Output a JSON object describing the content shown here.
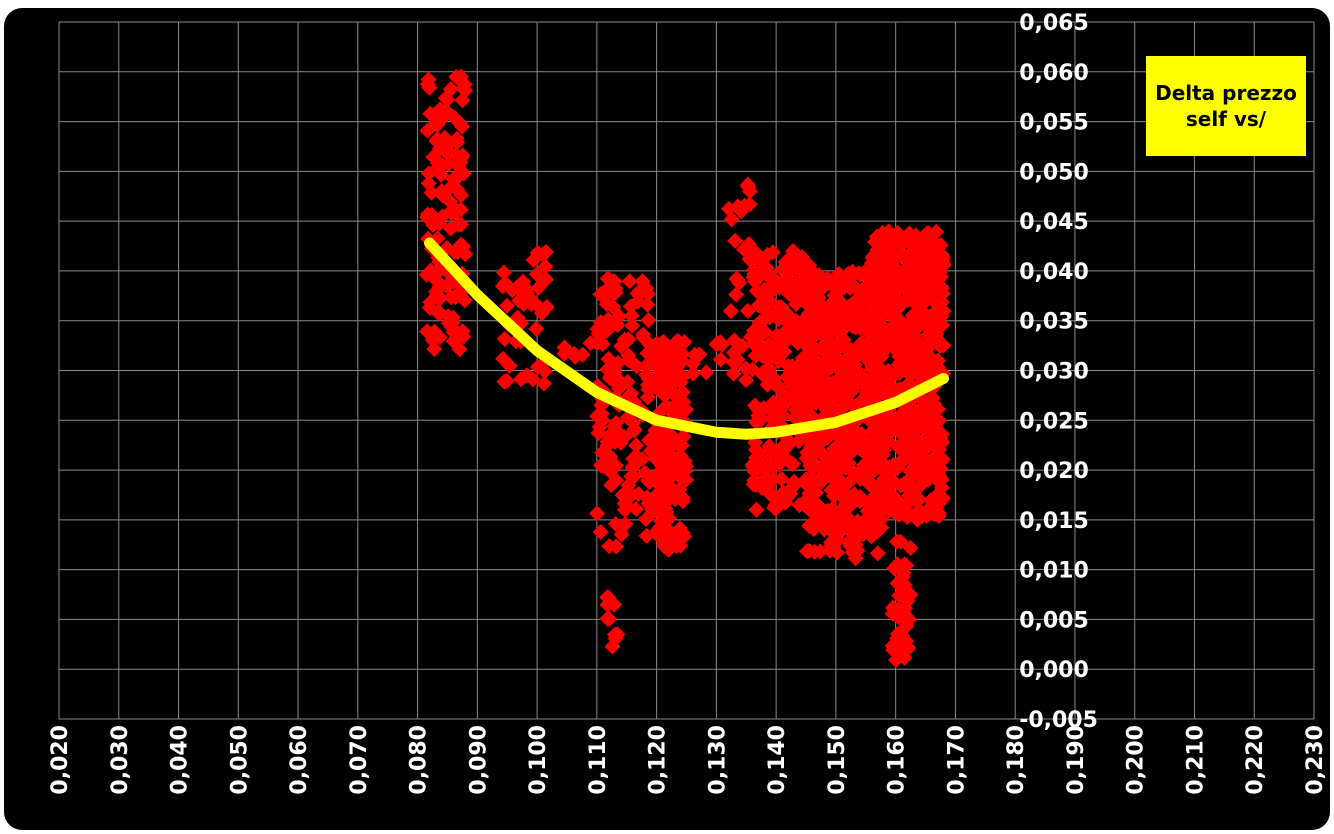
{
  "chart_data": {
    "type": "scatter",
    "legend": {
      "text": "Delta prezzo self vs/",
      "placement": "top-right",
      "color": "#ffff00"
    },
    "background": "#000000",
    "grid": true,
    "xlim": [
      0.02,
      0.23
    ],
    "ylim": [
      -0.005,
      0.065
    ],
    "x_ticks": [
      "0,020",
      "0,030",
      "0,040",
      "0,050",
      "0,060",
      "0,070",
      "0,080",
      "0,090",
      "0,100",
      "0,110",
      "0,120",
      "0,130",
      "0,140",
      "0,150",
      "0,160",
      "0,170",
      "0,180",
      "0,190",
      "0,200",
      "0,210",
      "0,220",
      "0,230"
    ],
    "y_ticks": [
      "0,065",
      "0,060",
      "0,055",
      "0,050",
      "0,045",
      "0,040",
      "0,035",
      "0,030",
      "0,025",
      "0,020",
      "0,015",
      "0,010",
      "0,005",
      "0,000",
      "-0,005"
    ],
    "series": [
      {
        "marker": "diamond",
        "color": "#ff0000",
        "clusters": [
          {
            "x": [
              0.0815,
              0.088
            ],
            "y": [
              0.032,
              0.06
            ],
            "n": 140
          },
          {
            "x": [
              0.094,
              0.102
            ],
            "y": [
              0.028,
              0.042
            ],
            "n": 45
          },
          {
            "x": [
              0.104,
              0.109
            ],
            "y": [
              0.031,
              0.033
            ],
            "n": 6
          },
          {
            "x": [
              0.11,
              0.119
            ],
            "y": [
              0.012,
              0.04
            ],
            "n": 150
          },
          {
            "x": [
              0.1115,
              0.1135
            ],
            "y": [
              0.002,
              0.008
            ],
            "n": 10
          },
          {
            "x": [
              0.119,
              0.125
            ],
            "y": [
              0.012,
              0.033
            ],
            "n": 180
          },
          {
            "x": [
              0.126,
              0.131
            ],
            "y": [
              0.029,
              0.033
            ],
            "n": 10
          },
          {
            "x": [
              0.132,
              0.136
            ],
            "y": [
              0.029,
              0.049
            ],
            "n": 30
          },
          {
            "x": [
              0.136,
              0.146
            ],
            "y": [
              0.016,
              0.042
            ],
            "n": 260
          },
          {
            "x": [
              0.145,
              0.158
            ],
            "y": [
              0.011,
              0.04
            ],
            "n": 520
          },
          {
            "x": [
              0.156,
              0.168
            ],
            "y": [
              0.015,
              0.044
            ],
            "n": 560
          },
          {
            "x": [
              0.1595,
              0.1625
            ],
            "y": [
              0.0,
              0.013
            ],
            "n": 40
          }
        ]
      },
      {
        "type": "line",
        "color": "#ffff00",
        "x": [
          0.082,
          0.09,
          0.1,
          0.11,
          0.12,
          0.13,
          0.135,
          0.14,
          0.15,
          0.16,
          0.168
        ],
        "y": [
          0.0428,
          0.0376,
          0.032,
          0.0278,
          0.025,
          0.0238,
          0.0236,
          0.0238,
          0.0248,
          0.0268,
          0.0292
        ]
      }
    ]
  }
}
